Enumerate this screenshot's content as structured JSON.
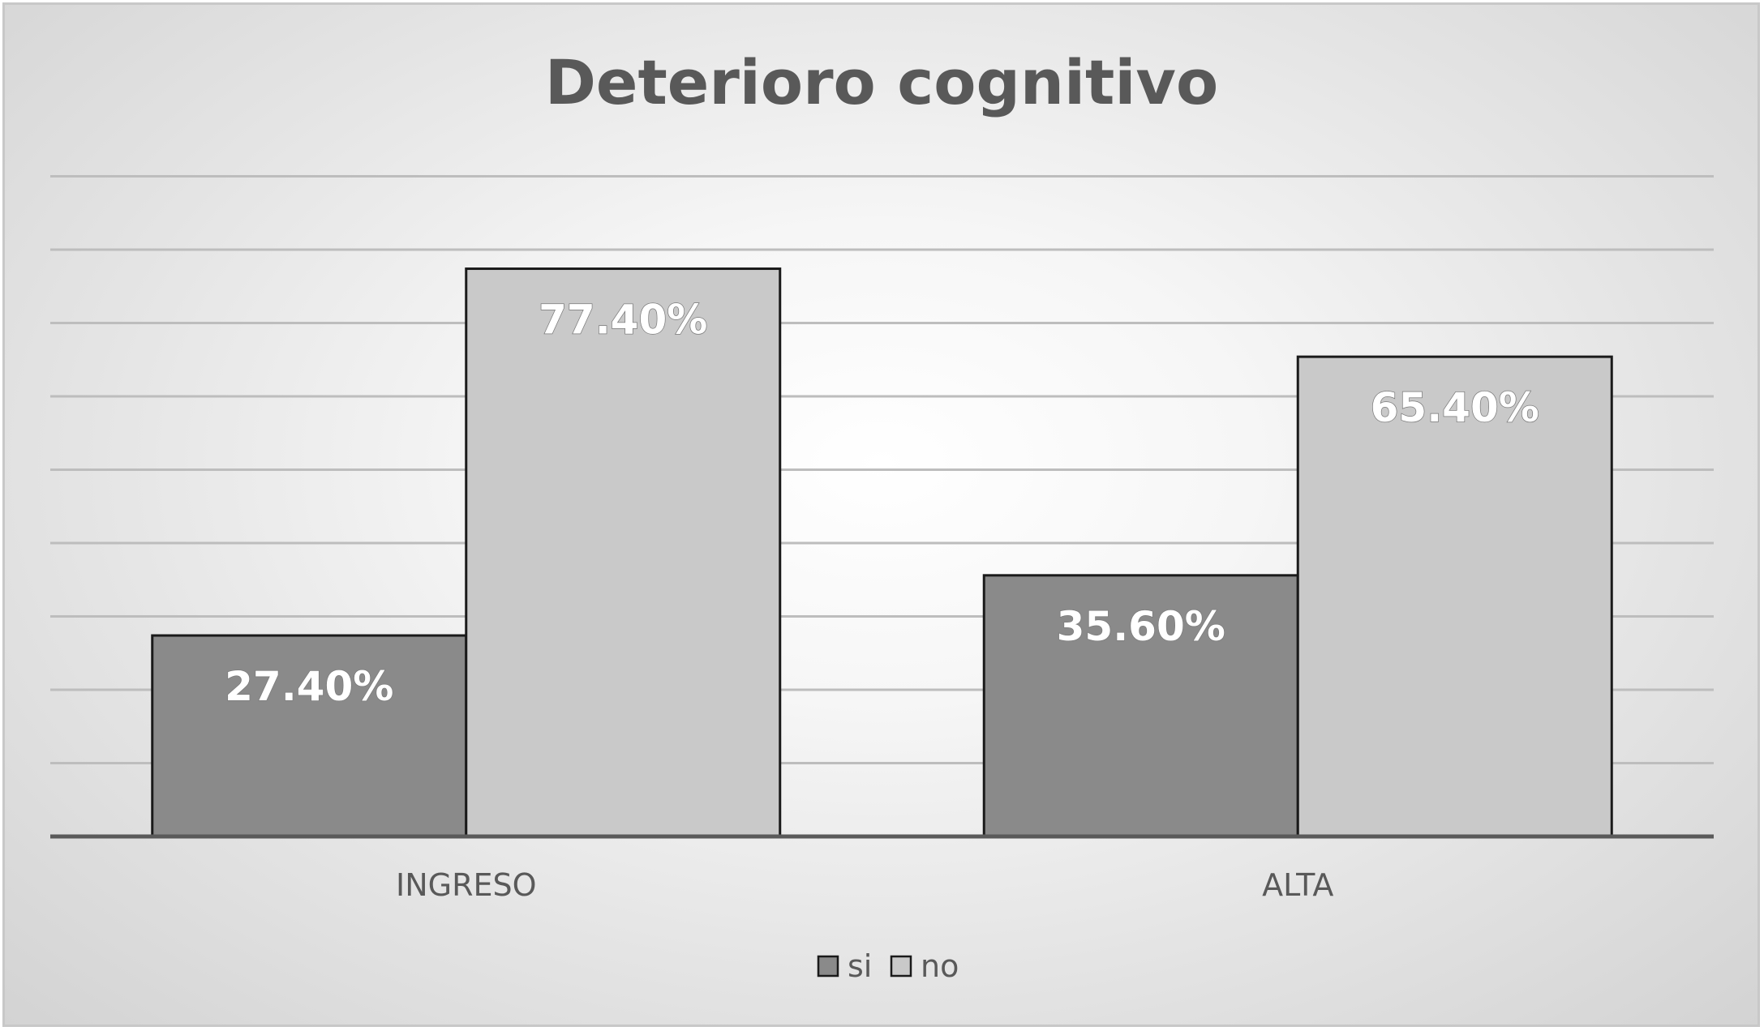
{
  "chart_data": {
    "type": "bar",
    "title": "Deterioro cognitivo",
    "xlabel": "",
    "ylabel": "",
    "categories": [
      "INGRESO",
      "ALTA"
    ],
    "series": [
      {
        "name": "si",
        "values": [
          27.4,
          35.6
        ],
        "labels": [
          "27.40%",
          "35.60%"
        ],
        "color": "#8a8a8a"
      },
      {
        "name": "no",
        "values": [
          77.4,
          65.4
        ],
        "labels": [
          "77.40%",
          "65.40%"
        ],
        "color": "#c9c9c9"
      }
    ],
    "ylim": [
      0,
      90
    ],
    "grid": true,
    "legend": "bottom",
    "axis_color": "#5a5a5a",
    "gridline_color": "#bdbdbd"
  }
}
